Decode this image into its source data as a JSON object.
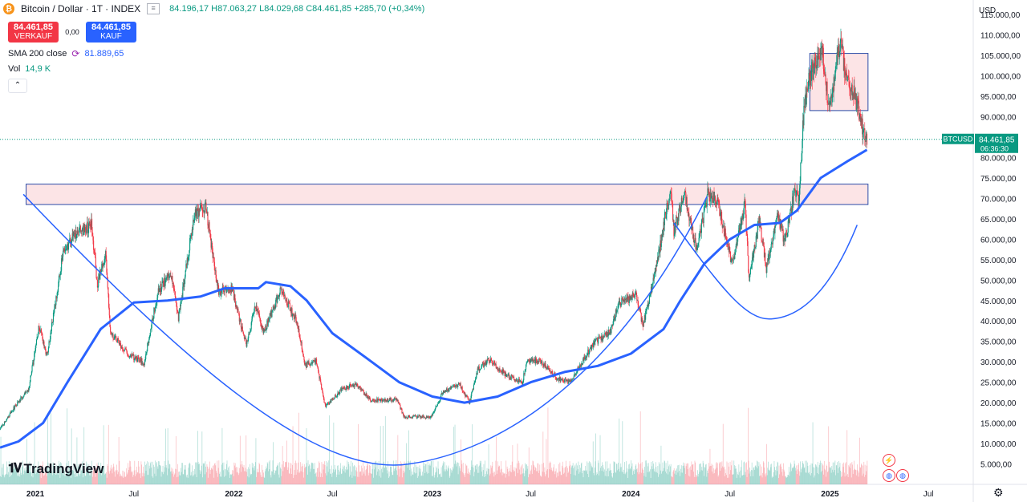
{
  "header": {
    "title": "Bitcoin / Dollar · 1T · INDEX",
    "open": "84.196,17",
    "high": "H87.063,27",
    "low": "L84.029,68",
    "close": "C84.461,85",
    "change": "+285,70 (+0,34%)",
    "logo_icon": "bitcoin-logo-icon"
  },
  "trade": {
    "sell_price": "84.461,85",
    "sell_label": "VERKAUF",
    "spread": "0,00",
    "buy_price": "84.461,85",
    "buy_label": "KAUF"
  },
  "indicators": {
    "sma_label": "SMA 200 close",
    "sma_value": "81.889,65",
    "vol_label": "Vol",
    "vol_value": "14,9 K"
  },
  "currency": "USD",
  "price_label": {
    "symbol": "BTCUSD",
    "price": "84.461,85",
    "countdown": "06:36:30"
  },
  "watermark": "TradingView",
  "colors": {
    "up": "#089981",
    "down": "#f23645",
    "sma": "#2962ff",
    "zone_fill": "#fce4e6",
    "zone_border": "#2a4ba8"
  },
  "chart_data": {
    "type": "candlestick",
    "symbol": "BTCUSD",
    "interval": "1T",
    "y_axis": {
      "ticks": [
        "5.000,00",
        "10.000,00",
        "15.000,00",
        "20.000,00",
        "25.000,00",
        "30.000,00",
        "35.000,00",
        "40.000,00",
        "45.000,00",
        "50.000,00",
        "55.000,00",
        "60.000,00",
        "65.000,00",
        "70.000,00",
        "75.000,00",
        "80.000,00",
        "85.000,00",
        "90.000,00",
        "95.000,00",
        "100.000,00",
        "105.000,00",
        "110.000,00",
        "115.000,00"
      ],
      "range": [
        0,
        117000
      ]
    },
    "x_axis": {
      "ticks": [
        "2021",
        "Jul",
        "2022",
        "Jul",
        "2023",
        "Jul",
        "2024",
        "Jul",
        "2025",
        "Jul"
      ],
      "range": [
        "2020-10-28",
        "2025-09-20"
      ]
    },
    "price_series": [
      [
        "2020-10-28",
        13500
      ],
      [
        "2020-11-20",
        18200
      ],
      [
        "2020-12-20",
        23500
      ],
      [
        "2021-01-08",
        39000
      ],
      [
        "2021-01-22",
        31000
      ],
      [
        "2021-02-20",
        56000
      ],
      [
        "2021-03-13",
        61000
      ],
      [
        "2021-04-14",
        63500
      ],
      [
        "2021-04-25",
        49000
      ],
      [
        "2021-05-10",
        57000
      ],
      [
        "2021-05-19",
        37000
      ],
      [
        "2021-06-22",
        31800
      ],
      [
        "2021-07-20",
        29800
      ],
      [
        "2021-08-14",
        47000
      ],
      [
        "2021-09-07",
        52000
      ],
      [
        "2021-09-21",
        40500
      ],
      [
        "2021-10-20",
        66000
      ],
      [
        "2021-11-10",
        68000
      ],
      [
        "2021-12-04",
        47000
      ],
      [
        "2021-12-28",
        48000
      ],
      [
        "2022-01-24",
        34000
      ],
      [
        "2022-02-10",
        44000
      ],
      [
        "2022-02-24",
        37000
      ],
      [
        "2022-03-28",
        47500
      ],
      [
        "2022-04-28",
        39500
      ],
      [
        "2022-05-12",
        29000
      ],
      [
        "2022-06-01",
        30500
      ],
      [
        "2022-06-18",
        19000
      ],
      [
        "2022-07-20",
        23500
      ],
      [
        "2022-08-13",
        24500
      ],
      [
        "2022-09-10",
        20500
      ],
      [
        "2022-10-28",
        20700
      ],
      [
        "2022-11-10",
        16500
      ],
      [
        "2022-12-30",
        16500
      ],
      [
        "2023-01-20",
        22500
      ],
      [
        "2023-02-20",
        24500
      ],
      [
        "2023-03-10",
        20000
      ],
      [
        "2023-03-25",
        28000
      ],
      [
        "2023-04-14",
        30500
      ],
      [
        "2023-05-20",
        26500
      ],
      [
        "2023-06-15",
        25000
      ],
      [
        "2023-06-25",
        30500
      ],
      [
        "2023-07-20",
        30000
      ],
      [
        "2023-08-18",
        26000
      ],
      [
        "2023-09-11",
        25000
      ],
      [
        "2023-10-24",
        34500
      ],
      [
        "2023-11-25",
        37500
      ],
      [
        "2023-12-08",
        44000
      ],
      [
        "2024-01-11",
        46500
      ],
      [
        "2024-01-23",
        39000
      ],
      [
        "2024-02-15",
        52000
      ],
      [
        "2024-03-14",
        73000
      ],
      [
        "2024-03-20",
        62000
      ],
      [
        "2024-04-08",
        71500
      ],
      [
        "2024-05-01",
        57000
      ],
      [
        "2024-05-21",
        71000
      ],
      [
        "2024-06-07",
        70000
      ],
      [
        "2024-07-05",
        54000
      ],
      [
        "2024-07-29",
        69000
      ],
      [
        "2024-08-05",
        50000
      ],
      [
        "2024-08-24",
        64500
      ],
      [
        "2024-09-06",
        53000
      ],
      [
        "2024-09-27",
        66000
      ],
      [
        "2024-10-10",
        59000
      ],
      [
        "2024-10-29",
        72500
      ],
      [
        "2024-11-05",
        68000
      ],
      [
        "2024-11-12",
        89000
      ],
      [
        "2024-11-22",
        99000
      ],
      [
        "2024-12-05",
        103000
      ],
      [
        "2024-12-17",
        107000
      ],
      [
        "2024-12-30",
        92000
      ],
      [
        "2025-01-20",
        108000
      ],
      [
        "2025-01-28",
        102000
      ],
      [
        "2025-02-10",
        97000
      ],
      [
        "2025-02-24",
        91500
      ],
      [
        "2025-03-03",
        86000
      ],
      [
        "2025-03-10",
        84400
      ]
    ],
    "sma200_series": [
      [
        "2020-10-28",
        9000
      ],
      [
        "2020-12-01",
        10500
      ],
      [
        "2021-01-15",
        15000
      ],
      [
        "2021-03-01",
        25000
      ],
      [
        "2021-05-01",
        38000
      ],
      [
        "2021-07-01",
        44500
      ],
      [
        "2021-09-01",
        45000
      ],
      [
        "2021-11-01",
        46000
      ],
      [
        "2021-12-15",
        48000
      ],
      [
        "2022-01-15",
        48000
      ],
      [
        "2022-02-15",
        48000
      ],
      [
        "2022-03-01",
        49500
      ],
      [
        "2022-04-15",
        48500
      ],
      [
        "2022-05-15",
        45000
      ],
      [
        "2022-07-01",
        37000
      ],
      [
        "2022-09-01",
        31000
      ],
      [
        "2022-11-01",
        25000
      ],
      [
        "2023-01-01",
        21500
      ],
      [
        "2023-03-01",
        20000
      ],
      [
        "2023-05-01",
        21500
      ],
      [
        "2023-07-01",
        25000
      ],
      [
        "2023-09-01",
        27500
      ],
      [
        "2023-11-01",
        29000
      ],
      [
        "2024-01-01",
        32000
      ],
      [
        "2024-03-01",
        38000
      ],
      [
        "2024-04-01",
        45000
      ],
      [
        "2024-05-15",
        54000
      ],
      [
        "2024-07-01",
        60000
      ],
      [
        "2024-08-15",
        63500
      ],
      [
        "2024-10-01",
        64000
      ],
      [
        "2024-11-01",
        67000
      ],
      [
        "2024-12-15",
        75000
      ],
      [
        "2025-02-01",
        79000
      ],
      [
        "2025-03-10",
        81900
      ]
    ],
    "last_price": 84461.85,
    "sma200_last": 81889.65
  }
}
